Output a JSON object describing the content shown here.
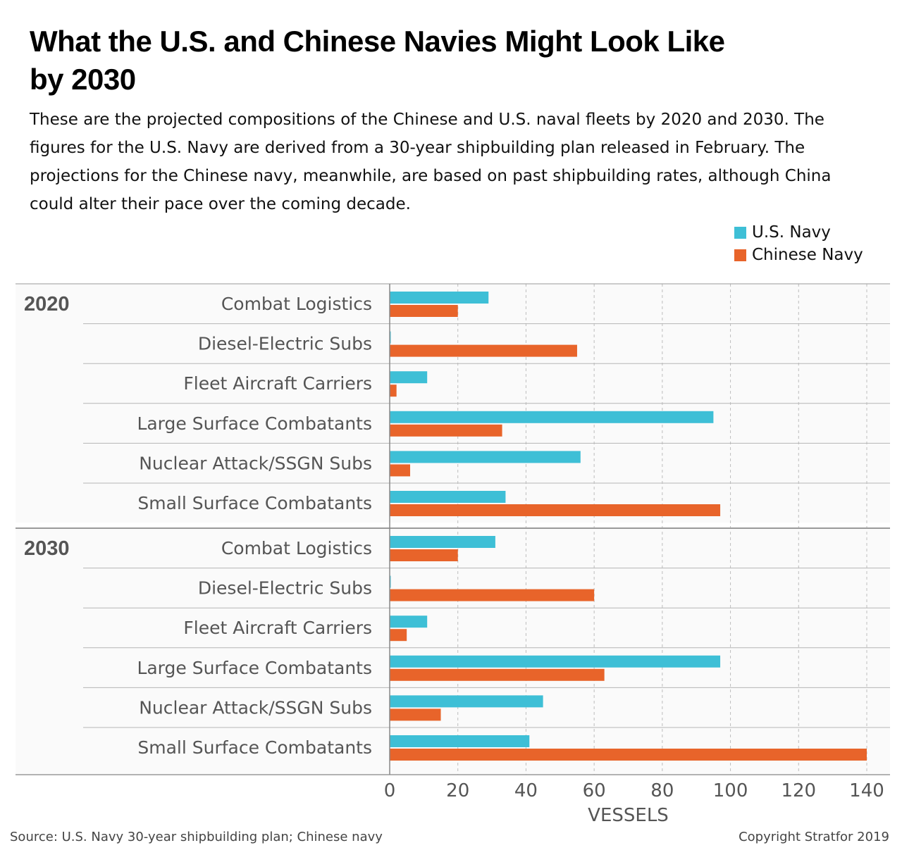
{
  "title": "What the U.S. and Chinese Navies Might Look Like by 2030",
  "subtitle": "These are the projected compositions of the Chinese and U.S. naval fleets by 2020 and 2030. The figures for the U.S. Navy are derived from a 30-year shipbuilding plan released in February. The projections for the Chinese navy, meanwhile, are based on past shipbuilding rates, although China could alter their pace over the coming decade.",
  "legend": {
    "us_label": "U.S. Navy",
    "china_label": "Chinese Navy"
  },
  "colors": {
    "us": "#3ebfd6",
    "china": "#e8642a"
  },
  "chart_data": {
    "type": "bar",
    "orientation": "horizontal",
    "xlabel": "VESSELS",
    "xlim": [
      0,
      140
    ],
    "xticks": [
      0,
      20,
      40,
      60,
      80,
      100,
      120,
      140
    ],
    "grid": true,
    "legend_position": "top-right",
    "groups": [
      {
        "label": "2020",
        "categories": [
          "Combat Logistics",
          "Diesel-Electric Subs",
          "Fleet Aircraft Carriers",
          "Large Surface Combatants",
          "Nuclear Attack/SSGN Subs",
          "Small Surface Combatants"
        ],
        "series": [
          {
            "name": "U.S. Navy",
            "values": [
              29,
              0,
              11,
              95,
              56,
              34
            ]
          },
          {
            "name": "Chinese Navy",
            "values": [
              20,
              55,
              2,
              33,
              6,
              97
            ]
          }
        ]
      },
      {
        "label": "2030",
        "categories": [
          "Combat Logistics",
          "Diesel-Electric Subs",
          "Fleet Aircraft Carriers",
          "Large Surface Combatants",
          "Nuclear Attack/SSGN Subs",
          "Small Surface Combatants"
        ],
        "series": [
          {
            "name": "U.S. Navy",
            "values": [
              31,
              0,
              11,
              97,
              45,
              41
            ]
          },
          {
            "name": "Chinese Navy",
            "values": [
              20,
              60,
              5,
              63,
              15,
              140
            ]
          }
        ]
      }
    ]
  },
  "source": "Source: U.S. Navy 30-year shipbuilding plan; Chinese navy",
  "copyright": "Copyright Stratfor 2019"
}
